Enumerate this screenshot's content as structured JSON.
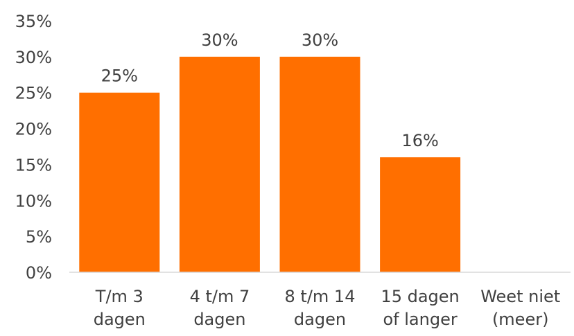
{
  "chart_data": {
    "type": "bar",
    "categories": [
      [
        "T/m 3",
        "dagen"
      ],
      [
        "4 t/m 7",
        "dagen"
      ],
      [
        "8 t/m 14",
        "dagen"
      ],
      [
        "15 dagen",
        "of langer"
      ],
      [
        "Weet niet",
        "(meer)"
      ]
    ],
    "values": [
      25,
      30,
      30,
      16,
      null
    ],
    "data_labels": [
      "25%",
      "30%",
      "30%",
      "16%",
      ""
    ],
    "y_ticks": [
      "0%",
      "5%",
      "10%",
      "15%",
      "20%",
      "25%",
      "30%",
      "35%"
    ],
    "ylim": [
      0,
      35
    ],
    "title": "",
    "xlabel": "",
    "ylabel": "",
    "grid": false,
    "legend": "none",
    "bar_color": "#FF6F00",
    "text_color": "#404040",
    "axis_color": "#D9D9D9"
  }
}
